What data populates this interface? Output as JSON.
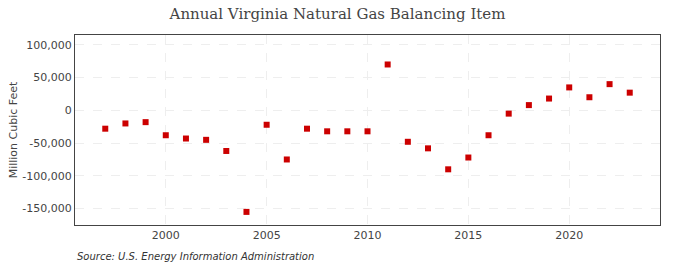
{
  "chart_data": {
    "type": "scatter",
    "title": "Annual Virginia Natural Gas Balancing Item",
    "ylabel": "Million Cubic Feet",
    "source": "Source: U.S. Energy Information Administration",
    "x": [
      1997,
      1998,
      1999,
      2000,
      2001,
      2002,
      2003,
      2004,
      2005,
      2006,
      2007,
      2008,
      2009,
      2010,
      2011,
      2012,
      2013,
      2014,
      2015,
      2016,
      2017,
      2018,
      2019,
      2020,
      2021,
      2022,
      2023
    ],
    "values": [
      -28000,
      -20000,
      -18000,
      -38000,
      -43000,
      -45000,
      -62000,
      -155000,
      -22000,
      -75000,
      -28000,
      -32000,
      -32000,
      -32000,
      70000,
      -48000,
      -58000,
      -90000,
      -72000,
      -38000,
      -5000,
      8000,
      18000,
      35000,
      20000,
      40000,
      27000
    ],
    "color": "#cc0000",
    "marker": "square",
    "xlim": [
      1995.5,
      2024.5
    ],
    "xticks": [
      2000,
      2005,
      2010,
      2015,
      2020
    ],
    "ylim": [
      -175000,
      115000
    ],
    "yticks": [
      {
        "value": -150000,
        "label": "-150,000"
      },
      {
        "value": -100000,
        "label": "-100,000"
      },
      {
        "value": -50000,
        "label": "-50,000"
      },
      0,
      {
        "value": 50000,
        "label": "50,000"
      },
      {
        "value": 100000,
        "label": "100,000"
      }
    ],
    "grid": true
  }
}
